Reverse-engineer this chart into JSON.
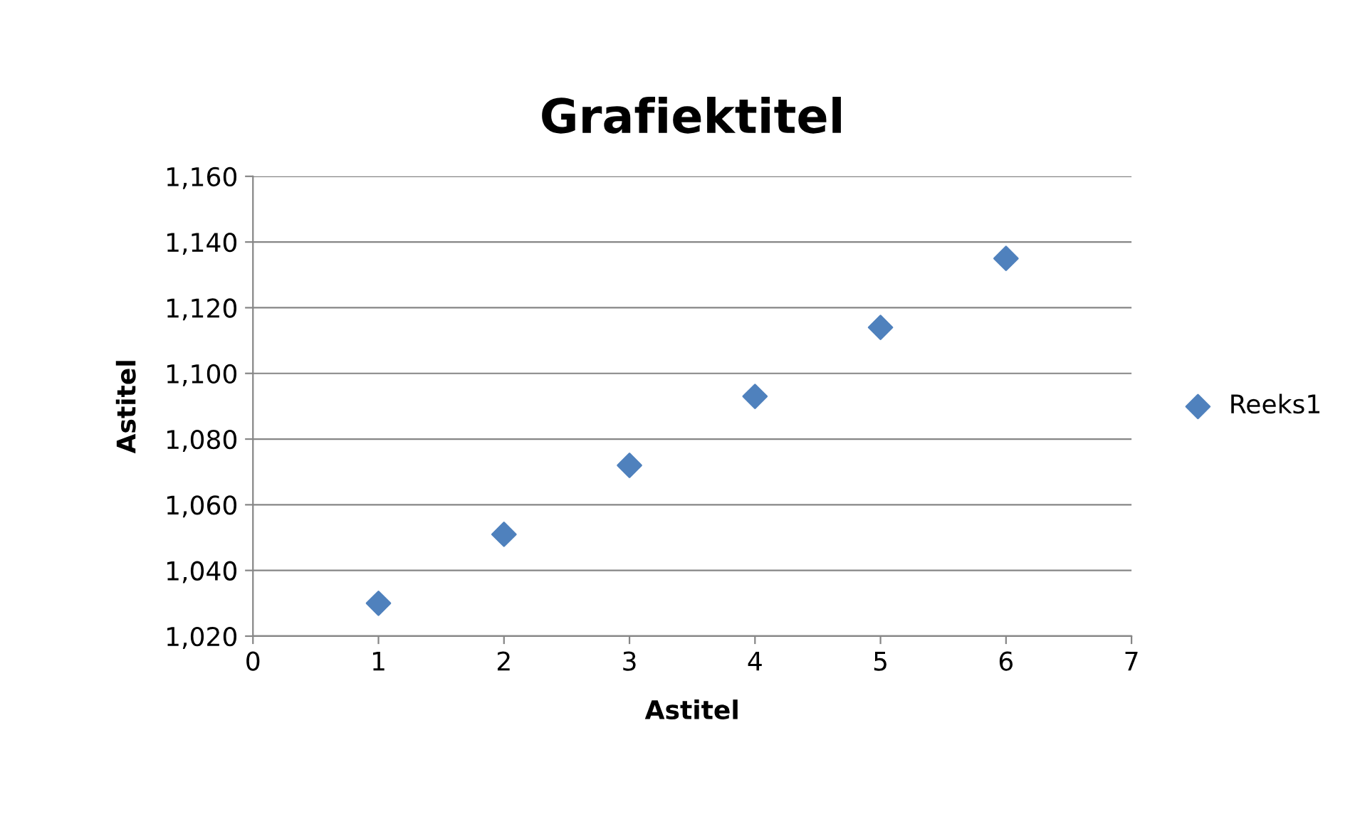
{
  "chart_data": {
    "type": "scatter",
    "title": "Grafiektitel",
    "xlabel": "Astitel",
    "ylabel": "Astitel",
    "x": [
      1,
      2,
      3,
      4,
      5,
      6
    ],
    "series": [
      {
        "name": "Reeks1",
        "color": "#4f81bd",
        "values": [
          1030,
          1051,
          1072,
          1093,
          1114,
          1135
        ]
      }
    ],
    "xlim": [
      0,
      7
    ],
    "xticks": [
      0,
      1,
      2,
      3,
      4,
      5,
      6,
      7
    ],
    "ylim": [
      1020,
      1160
    ],
    "yticks": [
      {
        "value": 1020,
        "label": "1,020"
      },
      {
        "value": 1040,
        "label": "1,040"
      },
      {
        "value": 1060,
        "label": "1,060"
      },
      {
        "value": 1080,
        "label": "1,080"
      },
      {
        "value": 1100,
        "label": "1,100"
      },
      {
        "value": 1120,
        "label": "1,120"
      },
      {
        "value": 1140,
        "label": "1,140"
      },
      {
        "value": 1160,
        "label": "1,160"
      }
    ],
    "grid": "y",
    "legend": "right",
    "marker": "diamond"
  }
}
